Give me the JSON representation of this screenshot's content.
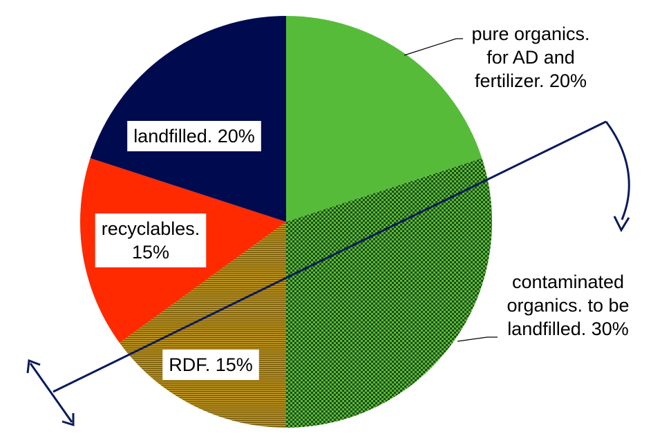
{
  "chart_data": {
    "type": "pie",
    "title": "",
    "start": "12 o'clock",
    "direction": "clockwise",
    "slices": [
      {
        "label_lines": [
          "pure organics.",
          "for AD and",
          "fertilizer. 20%"
        ],
        "category": "pure organics. for AD and fertilizer",
        "value": 20,
        "color": "#57BB3A",
        "pattern": "solid"
      },
      {
        "label_lines": [
          "contaminated",
          "organics. to be",
          "landfilled. 30%"
        ],
        "category": "contaminated organics. to be landfilled",
        "value": 30,
        "color": "#57BB3A",
        "pattern": "checker"
      },
      {
        "label_lines": [
          "RDF. 15%"
        ],
        "category": "RDF",
        "value": 15,
        "color": "#B8901F",
        "pattern": "horizontal-stripes"
      },
      {
        "label_lines": [
          "recyclables.",
          "15%"
        ],
        "category": "recyclables",
        "value": 15,
        "color": "#FF2A00",
        "pattern": "solid"
      },
      {
        "label_lines": [
          "landfilled. 20%"
        ],
        "category": "landfilled",
        "value": 20,
        "color": "#000B4F",
        "pattern": "solid"
      }
    ],
    "annotations": {
      "diagonal_line_color": "#0B1A5C",
      "arrow_right": "curved arrow pointing down",
      "arrow_left": "double-headed arrow"
    }
  }
}
